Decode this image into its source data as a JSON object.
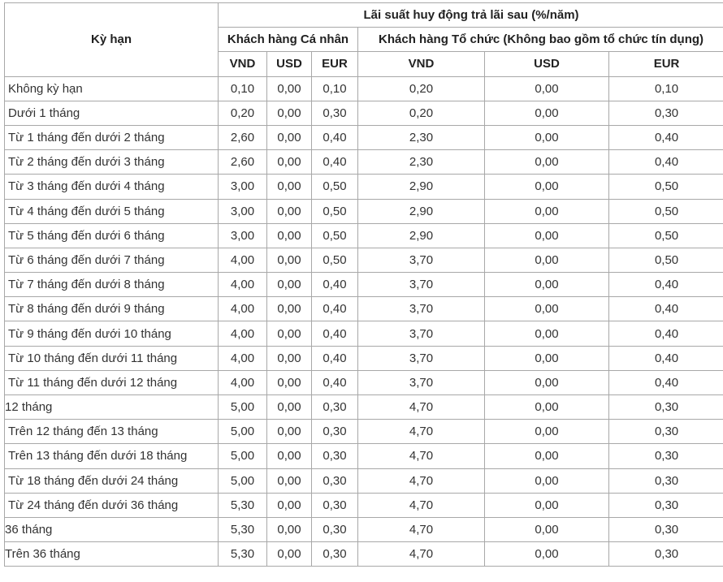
{
  "header": {
    "term_label": "Kỳ hạn",
    "title": "Lãi suất huy động trả lãi sau (%/năm)",
    "group_individual": "Khách hàng Cá nhân",
    "group_org": "Khách hàng Tổ chức (Không bao gồm tổ chức tín dụng)",
    "currencies": [
      "VND",
      "USD",
      "EUR",
      "VND",
      "USD",
      "EUR"
    ]
  },
  "rows": [
    {
      "term": "Không kỳ hạn",
      "v": [
        "0,10",
        "0,00",
        "0,10",
        "0,20",
        "0,00",
        "0,10"
      ]
    },
    {
      "term": "Dưới 1 tháng",
      "v": [
        "0,20",
        "0,00",
        "0,30",
        "0,20",
        "0,00",
        "0,30"
      ]
    },
    {
      "term": "Từ 1 tháng đến dưới 2 tháng",
      "v": [
        "2,60",
        "0,00",
        "0,40",
        "2,30",
        "0,00",
        "0,40"
      ]
    },
    {
      "term": "Từ 2 tháng đến dưới 3 tháng",
      "v": [
        "2,60",
        "0,00",
        "0,40",
        "2,30",
        "0,00",
        "0,40"
      ]
    },
    {
      "term": "Từ 3 tháng đến dưới 4 tháng",
      "v": [
        "3,00",
        "0,00",
        "0,50",
        "2,90",
        "0,00",
        "0,50"
      ]
    },
    {
      "term": "Từ 4 tháng đến dưới 5 tháng",
      "v": [
        "3,00",
        "0,00",
        "0,50",
        "2,90",
        "0,00",
        "0,50"
      ]
    },
    {
      "term": "Từ 5 tháng đến dưới 6 tháng",
      "v": [
        "3,00",
        "0,00",
        "0,50",
        "2,90",
        "0,00",
        "0,50"
      ]
    },
    {
      "term": "Từ 6 tháng đến dưới 7 tháng",
      "v": [
        "4,00",
        "0,00",
        "0,50",
        "3,70",
        "0,00",
        "0,50"
      ]
    },
    {
      "term": "Từ 7 tháng đến dưới 8 tháng",
      "v": [
        "4,00",
        "0,00",
        "0,40",
        "3,70",
        "0,00",
        "0,40"
      ]
    },
    {
      "term": "Từ 8 tháng đến dưới 9 tháng",
      "v": [
        "4,00",
        "0,00",
        "0,40",
        "3,70",
        "0,00",
        "0,40"
      ]
    },
    {
      "term": "Từ 9 tháng đến dưới 10 tháng",
      "v": [
        "4,00",
        "0,00",
        "0,40",
        "3,70",
        "0,00",
        "0,40"
      ]
    },
    {
      "term": "Từ 10 tháng đến dưới 11 tháng",
      "v": [
        "4,00",
        "0,00",
        "0,40",
        "3,70",
        "0,00",
        "0,40"
      ]
    },
    {
      "term": "Từ 11 tháng đến dưới 12 tháng",
      "v": [
        "4,00",
        "0,00",
        "0,40",
        "3,70",
        "0,00",
        "0,40"
      ]
    },
    {
      "term": "12 tháng",
      "v": [
        "5,00",
        "0,00",
        "0,30",
        "4,70",
        "0,00",
        "0,30"
      ]
    },
    {
      "term": "Trên 12 tháng đến 13 tháng",
      "v": [
        "5,00",
        "0,00",
        "0,30",
        "4,70",
        "0,00",
        "0,30"
      ]
    },
    {
      "term": "Trên 13 tháng đến dưới 18 tháng",
      "v": [
        "5,00",
        "0,00",
        "0,30",
        "4,70",
        "0,00",
        "0,30"
      ]
    },
    {
      "term": "Từ 18 tháng đến dưới 24 tháng",
      "v": [
        "5,00",
        "0,00",
        "0,30",
        "4,70",
        "0,00",
        "0,30"
      ]
    },
    {
      "term": "Từ 24 tháng đến dưới 36 tháng",
      "v": [
        "5,30",
        "0,00",
        "0,30",
        "4,70",
        "0,00",
        "0,30"
      ]
    },
    {
      "term": "36 tháng",
      "v": [
        "5,30",
        "0,00",
        "0,30",
        "4,70",
        "0,00",
        "0,30"
      ]
    },
    {
      "term": "Trên 36 tháng",
      "v": [
        "5,30",
        "0,00",
        "0,30",
        "4,70",
        "0,00",
        "0,30"
      ]
    }
  ]
}
